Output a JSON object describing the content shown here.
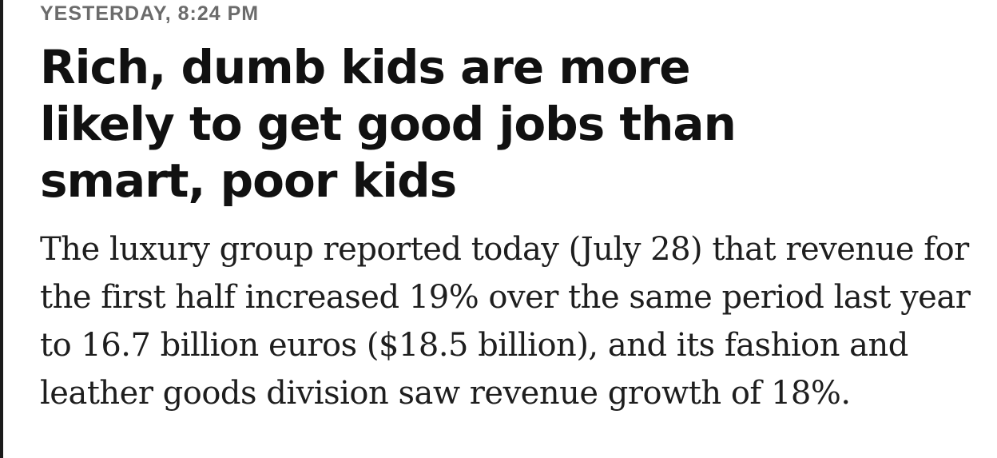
{
  "article": {
    "timestamp": "YESTERDAY, 8:24 PM",
    "headline": "Rich, dumb kids are more likely to get good jobs than smart, poor kids",
    "dek": "The luxury group reported today (July 28) that revenue for the first half increased 19% over the same period last year to 16.7 billion euros ($18.5 billion), and its fashion and leather goods division saw revenue growth of 18%."
  }
}
